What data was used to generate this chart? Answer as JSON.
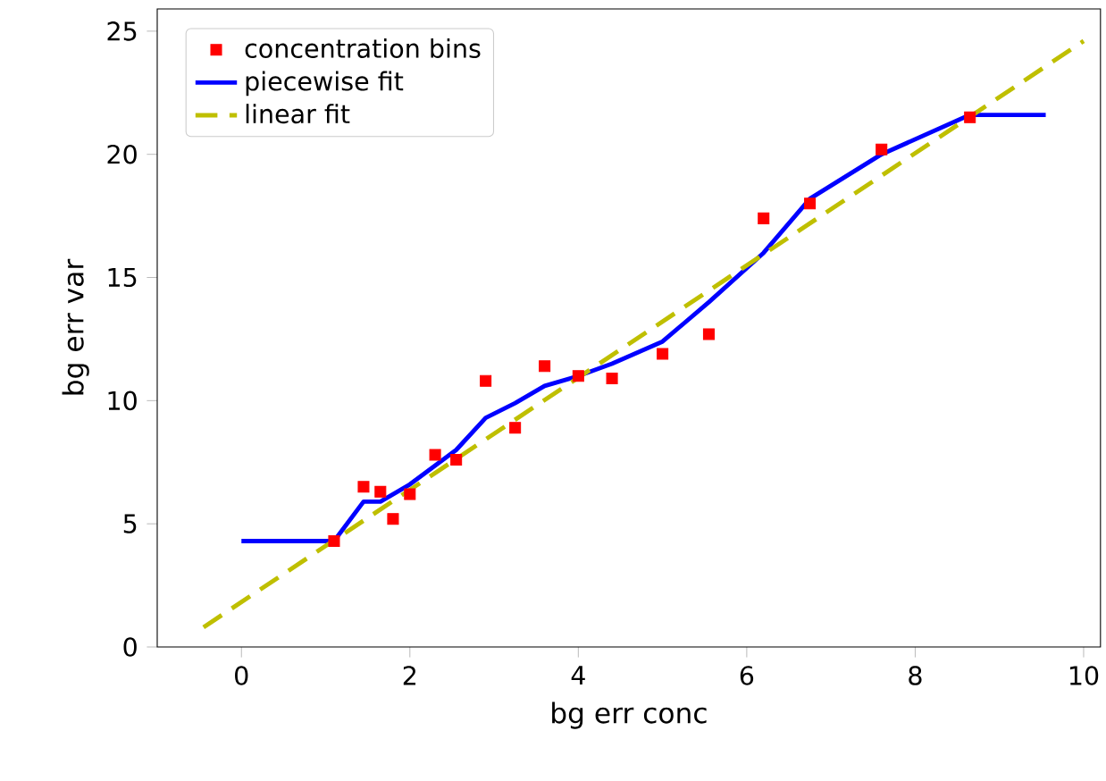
{
  "chart_data": {
    "type": "scatter",
    "xlabel": "bg err conc",
    "ylabel": "bg err var",
    "xlim": [
      -1,
      10.2
    ],
    "ylim": [
      0,
      25.9
    ],
    "xticks": [
      0,
      2,
      4,
      6,
      8,
      10
    ],
    "yticks": [
      0,
      5,
      10,
      15,
      20,
      25
    ],
    "legend": "top left",
    "grid": false,
    "series": [
      {
        "name": "concentration bins",
        "marker": "square",
        "color": "#ff0000",
        "x": [
          1.1,
          1.45,
          1.65,
          1.8,
          2.0,
          2.3,
          2.55,
          2.9,
          3.25,
          3.6,
          4.0,
          4.4,
          5.0,
          5.55,
          6.2,
          6.75,
          7.6,
          8.65
        ],
        "values": [
          4.3,
          6.5,
          6.3,
          5.2,
          6.2,
          7.8,
          7.6,
          10.8,
          8.9,
          11.4,
          11.0,
          10.9,
          11.9,
          12.7,
          17.4,
          18.0,
          20.2,
          21.5
        ]
      },
      {
        "name": "piecewise fit",
        "type": "line",
        "marker": "none",
        "line_style": "solid",
        "color": "#0000ff",
        "x": [
          0,
          1.1,
          1.45,
          1.65,
          2.0,
          2.55,
          2.9,
          3.25,
          3.6,
          4.0,
          4.4,
          5.0,
          5.55,
          6.2,
          6.75,
          7.6,
          8.65,
          9.55
        ],
        "values": [
          4.3,
          4.3,
          5.9,
          5.9,
          6.6,
          8.0,
          9.3,
          9.9,
          10.6,
          11.0,
          11.5,
          12.4,
          14.0,
          16.0,
          18.2,
          20.0,
          21.6,
          21.6
        ]
      },
      {
        "name": "linear fit",
        "type": "line",
        "marker": "none",
        "line_style": "dashed",
        "color": "#bfbf00",
        "x": [
          -0.45,
          10.0
        ],
        "values": [
          0.8,
          24.6
        ]
      }
    ]
  }
}
